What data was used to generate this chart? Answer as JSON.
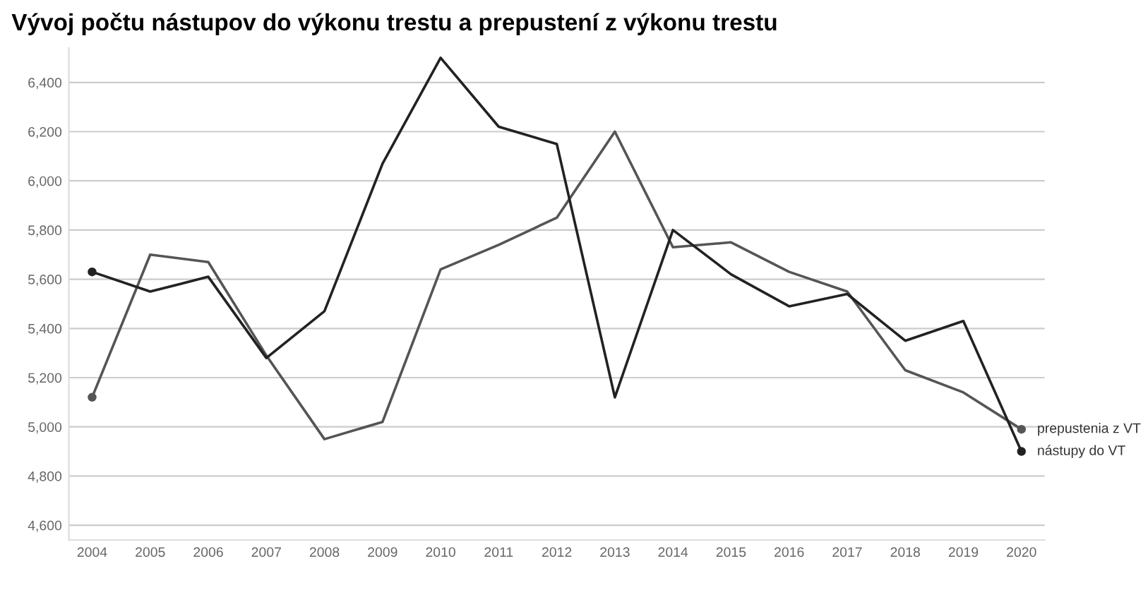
{
  "chart_data": {
    "type": "line",
    "title": "Vývoj počtu nástupov do výkonu trestu a prepustení z výkonu trestu",
    "categories": [
      "2004",
      "2005",
      "2006",
      "2007",
      "2008",
      "2009",
      "2010",
      "2011",
      "2012",
      "2013",
      "2014",
      "2015",
      "2016",
      "2017",
      "2018",
      "2019",
      "2020"
    ],
    "series": [
      {
        "name": "prepustenia z VT",
        "color": "#555555",
        "values": [
          5120,
          5700,
          5670,
          5290,
          4950,
          5020,
          5640,
          5740,
          5850,
          6200,
          5730,
          5750,
          5630,
          5550,
          5230,
          5140,
          4990
        ]
      },
      {
        "name": "nástupy do VT",
        "color": "#222222",
        "values": [
          5630,
          5550,
          5610,
          5280,
          5470,
          6070,
          6500,
          6220,
          6150,
          5120,
          5800,
          5620,
          5490,
          5540,
          5350,
          5430,
          4900
        ]
      }
    ],
    "ylim": [
      4540,
      6540
    ],
    "yticks": [
      {
        "value": 4600,
        "label": "4,600"
      },
      {
        "value": 4800,
        "label": "4,800"
      },
      {
        "value": 5000,
        "label": "5,000"
      },
      {
        "value": 5200,
        "label": "5,200"
      },
      {
        "value": 5400,
        "label": "5,400"
      },
      {
        "value": 5600,
        "label": "5,600"
      },
      {
        "value": 5800,
        "label": "5,800"
      },
      {
        "value": 6000,
        "label": "6,000"
      },
      {
        "value": 6200,
        "label": "6,200"
      },
      {
        "value": 6400,
        "label": "6,400"
      }
    ],
    "grid": "y",
    "line_style": "solid",
    "legend": false
  }
}
